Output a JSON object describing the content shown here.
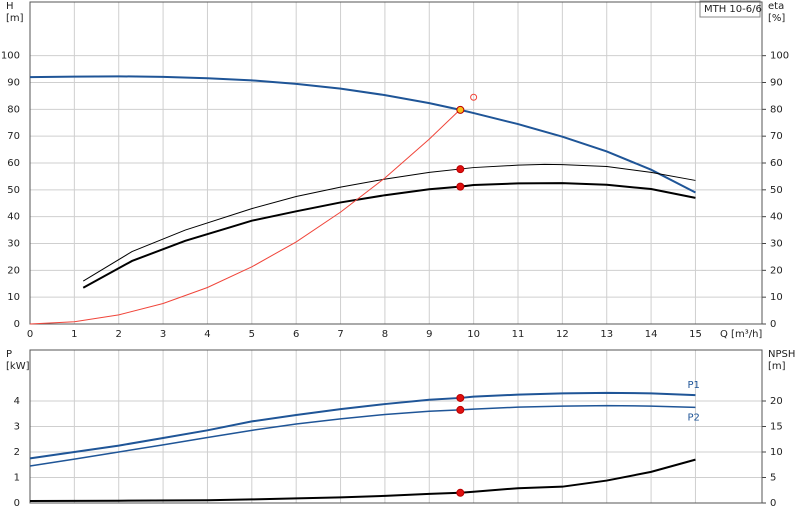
{
  "chart_data": [
    {
      "type": "line",
      "title": "MTH 10-6/6",
      "ylabel": [
        "H",
        "[m]"
      ],
      "y2label": [
        "eta",
        "[%]"
      ],
      "xlabel": "Q [m³/h]",
      "xlim": [
        0,
        16.5
      ],
      "xticks": [
        0,
        1,
        2,
        3,
        4,
        5,
        6,
        7,
        8,
        9,
        10,
        11,
        12,
        13,
        14,
        15
      ],
      "ylim": [
        0,
        120
      ],
      "yticks": [
        0,
        10,
        20,
        30,
        40,
        50,
        60,
        70,
        80,
        90,
        100
      ],
      "y2lim": [
        0,
        120
      ],
      "y2ticks": [
        0,
        10,
        20,
        30,
        40,
        50,
        60,
        70,
        80,
        90,
        100
      ],
      "grid": true,
      "xtick_labels": true,
      "series": [
        {
          "color": "#1f5597",
          "width": 2,
          "x": [
            0,
            1,
            2,
            3,
            4,
            5,
            6,
            7,
            8,
            9,
            9.7,
            10,
            11,
            12,
            13,
            14,
            15
          ],
          "values": [
            92,
            92.2,
            92.3,
            92.1,
            91.6,
            90.8,
            89.5,
            87.7,
            85.3,
            82.3,
            79.8,
            78.6,
            74.5,
            69.8,
            64.3,
            57.5,
            49
          ]
        },
        {
          "color": "#000000",
          "width": 1,
          "axis": "y2",
          "x": [
            1.2,
            2.3,
            3.5,
            5,
            6,
            7,
            8,
            9,
            10,
            11,
            11.6,
            12,
            13,
            14,
            15
          ],
          "values": [
            16,
            27,
            35,
            43,
            47.5,
            51,
            54,
            56.5,
            58.3,
            59.2,
            59.5,
            59.4,
            58.7,
            56.5,
            53.5
          ]
        },
        {
          "color": "#000000",
          "width": 2,
          "axis": "y2",
          "x": [
            1.2,
            2.3,
            3.5,
            4.5,
            5,
            6,
            7,
            8,
            9,
            9.7,
            10,
            11,
            12,
            13,
            14,
            15
          ],
          "values": [
            13.5,
            23.5,
            31,
            36,
            38.5,
            42,
            45.3,
            48,
            50.2,
            51.2,
            51.8,
            52.4,
            52.5,
            51.9,
            50.3,
            47
          ]
        },
        {
          "color": "#f0453a",
          "width": 1,
          "x": [
            0,
            1,
            2,
            3,
            4,
            5,
            6,
            7,
            8,
            9,
            9.7
          ],
          "values": [
            0,
            0.85,
            3.4,
            7.65,
            13.6,
            21.3,
            30.6,
            41.7,
            54.4,
            68.9,
            80
          ]
        },
        {
          "color": "#e01010",
          "style": "points",
          "axis": "y2",
          "x": [
            9.7,
            9.7
          ],
          "values": [
            57.7,
            51.2
          ]
        },
        {
          "color": "#f7c21b",
          "style": "points",
          "x": [
            9.7
          ],
          "values": [
            79.8
          ]
        },
        {
          "color": "#f0453a",
          "style": "open-points",
          "x": [
            10
          ],
          "values": [
            84.5
          ]
        }
      ]
    },
    {
      "type": "line",
      "ylabel": [
        "P",
        "[kW]"
      ],
      "y2label": [
        "NPSH",
        "[m]"
      ],
      "xlim": [
        0,
        16.5
      ],
      "xticks": [
        0,
        1,
        2,
        3,
        4,
        5,
        6,
        7,
        8,
        9,
        10,
        11,
        12,
        13,
        14,
        15
      ],
      "xtick_labels": false,
      "ylim": [
        0,
        6
      ],
      "yticks": [
        0,
        1,
        2,
        3,
        4
      ],
      "y2lim": [
        0,
        30
      ],
      "y2ticks": [
        0,
        5,
        10,
        15,
        20
      ],
      "grid": true,
      "series": [
        {
          "name": "P1",
          "color": "#1f5597",
          "width": 2,
          "x": [
            0,
            1,
            2,
            3,
            4,
            5,
            6,
            7,
            8,
            9,
            9.7,
            10,
            11,
            12,
            13,
            14,
            15
          ],
          "values": [
            1.75,
            2.0,
            2.25,
            2.55,
            2.85,
            3.2,
            3.45,
            3.68,
            3.88,
            4.05,
            4.12,
            4.17,
            4.25,
            4.3,
            4.32,
            4.3,
            4.23
          ]
        },
        {
          "name": "P2",
          "color": "#1f5597",
          "width": 1.5,
          "x": [
            0,
            1,
            2,
            3,
            4,
            5,
            6,
            7,
            8,
            9,
            9.7,
            10,
            11,
            12,
            13,
            14,
            15
          ],
          "values": [
            1.45,
            1.72,
            2.0,
            2.28,
            2.57,
            2.85,
            3.1,
            3.3,
            3.47,
            3.6,
            3.65,
            3.68,
            3.76,
            3.8,
            3.82,
            3.8,
            3.75
          ]
        },
        {
          "color": "#000000",
          "width": 2,
          "axis": "y2",
          "x": [
            0,
            2,
            4,
            5,
            6,
            7,
            8,
            9,
            9.7,
            10,
            11,
            12,
            13,
            14,
            15
          ],
          "values": [
            0.4,
            0.45,
            0.55,
            0.7,
            0.9,
            1.1,
            1.4,
            1.8,
            2.0,
            2.2,
            2.9,
            3.2,
            4.4,
            6.1,
            8.5
          ]
        },
        {
          "color": "#e01010",
          "style": "points",
          "x": [
            9.7,
            9.7
          ],
          "values": [
            4.12,
            3.65
          ]
        },
        {
          "color": "#e01010",
          "style": "points",
          "axis": "y2",
          "x": [
            9.7
          ],
          "values": [
            2.0
          ]
        }
      ]
    }
  ]
}
